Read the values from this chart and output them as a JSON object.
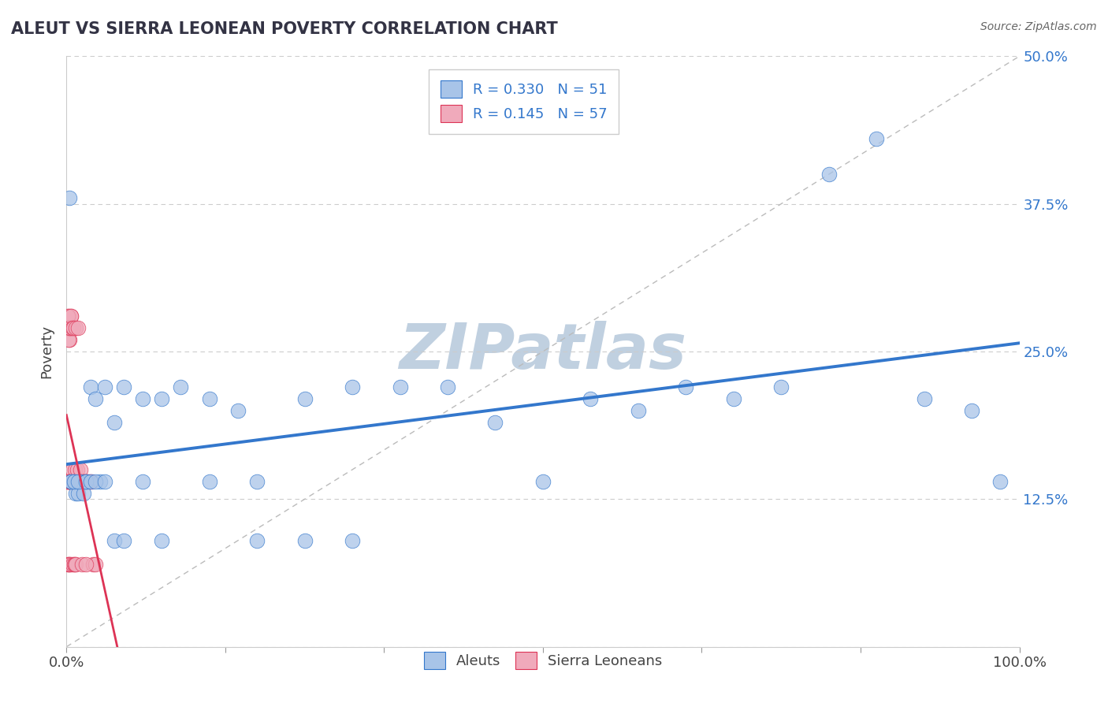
{
  "title": "ALEUT VS SIERRA LEONEAN POVERTY CORRELATION CHART",
  "source_text": "Source: ZipAtlas.com",
  "ylabel": "Poverty",
  "aleuts_R": 0.33,
  "aleuts_N": 51,
  "sierra_R": 0.145,
  "sierra_N": 57,
  "aleut_color": "#a8c4e8",
  "sierra_color": "#f0aabb",
  "aleut_line_color": "#3377cc",
  "sierra_line_color": "#dd3355",
  "aleut_scatter_x": [
    0.003,
    0.005,
    0.008,
    0.01,
    0.012,
    0.015,
    0.018,
    0.02,
    0.025,
    0.03,
    0.035,
    0.04,
    0.05,
    0.06,
    0.08,
    0.1,
    0.12,
    0.15,
    0.18,
    0.2,
    0.25,
    0.3,
    0.35,
    0.4,
    0.45,
    0.5,
    0.55,
    0.6,
    0.65,
    0.7,
    0.75,
    0.8,
    0.85,
    0.9,
    0.95,
    0.98,
    0.005,
    0.008,
    0.012,
    0.02,
    0.025,
    0.03,
    0.04,
    0.05,
    0.06,
    0.08,
    0.1,
    0.15,
    0.2,
    0.25,
    0.3
  ],
  "aleut_scatter_y": [
    0.38,
    0.14,
    0.14,
    0.13,
    0.13,
    0.14,
    0.13,
    0.14,
    0.22,
    0.21,
    0.14,
    0.22,
    0.19,
    0.22,
    0.21,
    0.21,
    0.22,
    0.21,
    0.2,
    0.14,
    0.21,
    0.22,
    0.22,
    0.22,
    0.19,
    0.14,
    0.21,
    0.2,
    0.22,
    0.21,
    0.22,
    0.4,
    0.43,
    0.21,
    0.2,
    0.14,
    0.14,
    0.14,
    0.14,
    0.14,
    0.14,
    0.14,
    0.14,
    0.09,
    0.09,
    0.14,
    0.09,
    0.14,
    0.09,
    0.09,
    0.09
  ],
  "sierra_scatter_x": [
    0.001,
    0.001,
    0.001,
    0.002,
    0.002,
    0.002,
    0.002,
    0.003,
    0.003,
    0.003,
    0.004,
    0.004,
    0.004,
    0.005,
    0.005,
    0.005,
    0.006,
    0.006,
    0.006,
    0.007,
    0.007,
    0.008,
    0.008,
    0.009,
    0.009,
    0.01,
    0.01,
    0.011,
    0.012,
    0.013,
    0.014,
    0.015,
    0.016,
    0.017,
    0.018,
    0.019,
    0.02,
    0.022,
    0.024,
    0.026,
    0.028,
    0.03,
    0.001,
    0.001,
    0.002,
    0.002,
    0.003,
    0.003,
    0.004,
    0.005,
    0.006,
    0.007,
    0.008,
    0.01,
    0.012,
    0.015,
    0.02
  ],
  "sierra_scatter_y": [
    0.14,
    0.14,
    0.07,
    0.28,
    0.27,
    0.14,
    0.07,
    0.27,
    0.26,
    0.07,
    0.14,
    0.14,
    0.07,
    0.28,
    0.27,
    0.14,
    0.15,
    0.14,
    0.07,
    0.14,
    0.14,
    0.14,
    0.07,
    0.15,
    0.07,
    0.14,
    0.07,
    0.15,
    0.14,
    0.14,
    0.14,
    0.15,
    0.07,
    0.14,
    0.14,
    0.14,
    0.14,
    0.14,
    0.14,
    0.14,
    0.07,
    0.07,
    0.28,
    0.27,
    0.26,
    0.14,
    0.27,
    0.14,
    0.27,
    0.28,
    0.27,
    0.27,
    0.14,
    0.27,
    0.27,
    0.14,
    0.07
  ],
  "watermark": "ZIPatlas",
  "watermark_color": "#c0d0e0",
  "background_color": "#ffffff",
  "grid_color": "#cccccc",
  "yticks": [
    0.0,
    0.125,
    0.25,
    0.375,
    0.5
  ],
  "ytick_labels": [
    "",
    "12.5%",
    "25.0%",
    "37.5%",
    "50.0%"
  ]
}
